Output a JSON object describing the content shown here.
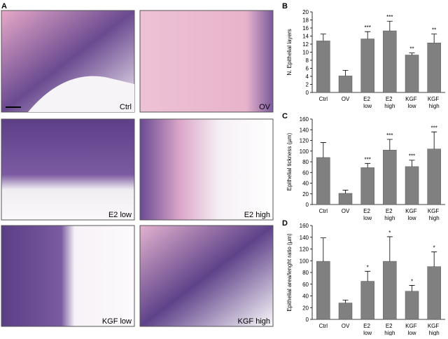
{
  "figure": {
    "panel_labels": [
      "A",
      "B",
      "C",
      "D"
    ],
    "images": [
      "Ctrl",
      "OV",
      "E2 low",
      "E2 high",
      "KGF low",
      "KGF high"
    ]
  },
  "chart_data": [
    {
      "type": "bar",
      "ylabel": "N. Epithelial layers",
      "categories": [
        "Ctrl",
        "OV",
        "E2 low",
        "E2 high",
        "KGF low",
        "KGF high"
      ],
      "values": [
        12.8,
        4.1,
        13.3,
        15.3,
        9.3,
        12.3
      ],
      "errors": [
        1.7,
        1.4,
        1.8,
        2.4,
        0.5,
        2.2
      ],
      "annotations": [
        null,
        null,
        "***",
        "***",
        "**",
        "**"
      ],
      "color": "#808080",
      "ylim": [
        0,
        20
      ],
      "yticks": [
        0,
        2,
        4,
        6,
        8,
        10,
        12,
        14,
        16,
        18,
        20
      ]
    },
    {
      "type": "bar",
      "ylabel": "Epithelial tickness (µm)",
      "categories": [
        "Ctrl",
        "OV",
        "E2 low",
        "E2 high",
        "KGF low",
        "KGF high"
      ],
      "values": [
        88,
        21,
        69,
        102,
        71,
        104
      ],
      "errors": [
        28,
        6,
        8,
        20,
        12,
        32
      ],
      "annotations": [
        null,
        null,
        "***",
        "***",
        "***",
        "***"
      ],
      "color": "#808080",
      "ylim": [
        0,
        160
      ],
      "yticks": [
        0,
        20,
        40,
        60,
        80,
        100,
        120,
        140,
        160
      ]
    },
    {
      "type": "bar",
      "ylabel": "Epithelial area/lenght ratio (µm)",
      "categories": [
        "Ctrl",
        "OV",
        "E2 low",
        "E2 high",
        "KGF low",
        "KGF high"
      ],
      "values": [
        99,
        28,
        65,
        99,
        48,
        90
      ],
      "errors": [
        40,
        5,
        17,
        42,
        10,
        25
      ],
      "annotations": [
        null,
        null,
        "*",
        "*",
        "*",
        "*"
      ],
      "color": "#808080",
      "ylim": [
        0,
        160
      ],
      "yticks": [
        0,
        20,
        40,
        60,
        80,
        100,
        120,
        140,
        160
      ]
    }
  ]
}
